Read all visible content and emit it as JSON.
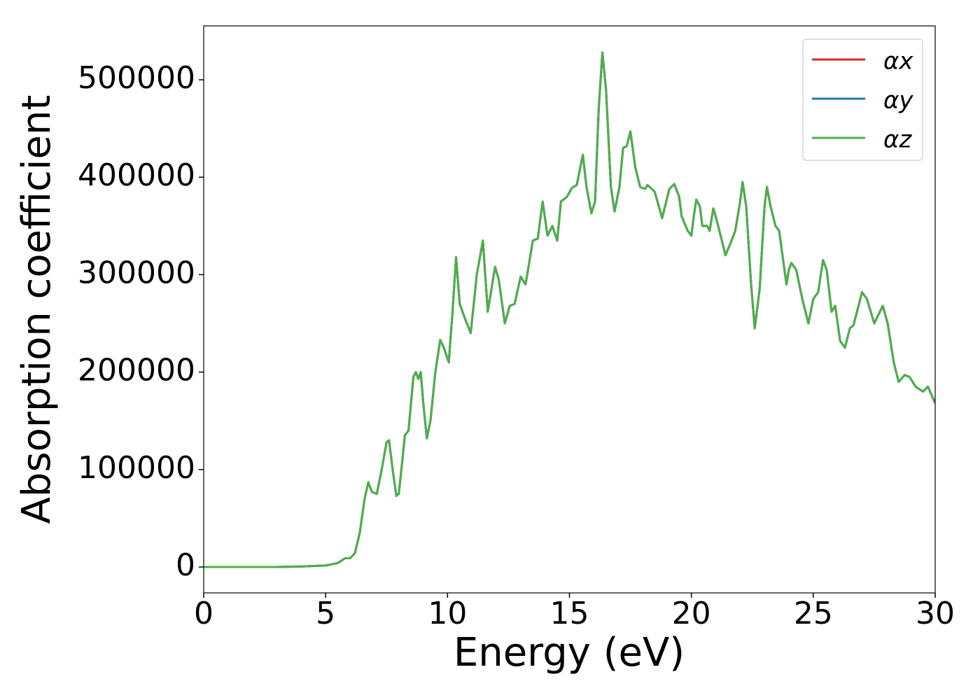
{
  "chart_data": {
    "type": "line",
    "xlabel": "Energy (eV)",
    "ylabel": "Absorption coefficient",
    "x": [
      0,
      1,
      2,
      3,
      4,
      5,
      5.5,
      5.8,
      6.0,
      6.2,
      6.4,
      6.6,
      6.75,
      6.9,
      7.1,
      7.3,
      7.5,
      7.6,
      7.75,
      7.9,
      8.0,
      8.15,
      8.25,
      8.4,
      8.6,
      8.7,
      8.8,
      8.9,
      9.0,
      9.15,
      9.3,
      9.5,
      9.7,
      9.85,
      10.05,
      10.2,
      10.35,
      10.5,
      10.7,
      10.95,
      11.2,
      11.45,
      11.65,
      11.95,
      12.1,
      12.35,
      12.55,
      12.75,
      13.0,
      13.2,
      13.5,
      13.7,
      13.9,
      14.1,
      14.3,
      14.5,
      14.65,
      14.9,
      15.1,
      15.3,
      15.55,
      15.7,
      15.9,
      16.05,
      16.2,
      16.35,
      16.5,
      16.7,
      16.85,
      17.05,
      17.2,
      17.35,
      17.5,
      17.7,
      17.9,
      18.1,
      18.2,
      18.5,
      18.8,
      19.1,
      19.3,
      19.5,
      19.6,
      19.85,
      20.0,
      20.1,
      20.2,
      20.35,
      20.45,
      20.65,
      20.75,
      20.9,
      21.05,
      21.2,
      21.4,
      21.65,
      21.8,
      22.0,
      22.1,
      22.25,
      22.45,
      22.6,
      22.8,
      23.0,
      23.1,
      23.25,
      23.45,
      23.6,
      23.9,
      24.0,
      24.1,
      24.3,
      24.55,
      24.8,
      25.0,
      25.2,
      25.4,
      25.55,
      25.75,
      25.9,
      26.1,
      26.3,
      26.5,
      26.65,
      27.0,
      27.2,
      27.5,
      27.85,
      28.05,
      28.3,
      28.5,
      28.75,
      28.95,
      29.2,
      29.5,
      29.7,
      30
    ],
    "series": [
      {
        "name": "αx",
        "color": "#d62728",
        "values": [
          0,
          0,
          0,
          0,
          500,
          1500,
          4000,
          9000,
          9000,
          14000,
          35000,
          70000,
          87000,
          77000,
          75000,
          100000,
          128000,
          130000,
          100000,
          73000,
          75000,
          110000,
          135000,
          140000,
          195000,
          200000,
          193000,
          200000,
          170000,
          132000,
          150000,
          200000,
          233000,
          225000,
          210000,
          260000,
          318000,
          270000,
          256000,
          240000,
          300000,
          335000,
          262000,
          308000,
          295000,
          250000,
          268000,
          270000,
          298000,
          290000,
          335000,
          337000,
          375000,
          340000,
          350000,
          335000,
          375000,
          380000,
          389000,
          392000,
          423000,
          390000,
          363000,
          375000,
          470000,
          528000,
          490000,
          390000,
          365000,
          390000,
          430000,
          432000,
          447000,
          410000,
          390000,
          388000,
          392000,
          385000,
          358000,
          388000,
          393000,
          380000,
          360000,
          345000,
          340000,
          360000,
          377000,
          370000,
          350000,
          350000,
          345000,
          368000,
          355000,
          340000,
          320000,
          335000,
          345000,
          375000,
          395000,
          370000,
          290000,
          245000,
          285000,
          370000,
          390000,
          370000,
          350000,
          345000,
          290000,
          305000,
          312000,
          305000,
          275000,
          250000,
          275000,
          282000,
          315000,
          305000,
          262000,
          268000,
          232000,
          225000,
          245000,
          248000,
          282000,
          275000,
          250000,
          268000,
          250000,
          210000,
          190000,
          197000,
          195000,
          185000,
          180000,
          185000,
          168000
        ]
      },
      {
        "name": "αy",
        "color": "#1f77b4",
        "values": [
          0,
          0,
          0,
          0,
          500,
          1500,
          4000,
          9000,
          9000,
          14000,
          35000,
          70000,
          87000,
          77000,
          75000,
          100000,
          128000,
          130000,
          100000,
          73000,
          75000,
          110000,
          135000,
          140000,
          195000,
          200000,
          193000,
          200000,
          170000,
          132000,
          150000,
          200000,
          233000,
          225000,
          210000,
          260000,
          318000,
          270000,
          256000,
          240000,
          300000,
          335000,
          262000,
          308000,
          295000,
          250000,
          268000,
          270000,
          298000,
          290000,
          335000,
          337000,
          375000,
          340000,
          350000,
          335000,
          375000,
          380000,
          389000,
          392000,
          423000,
          390000,
          363000,
          375000,
          470000,
          528000,
          490000,
          390000,
          365000,
          390000,
          430000,
          432000,
          447000,
          410000,
          390000,
          388000,
          392000,
          385000,
          358000,
          388000,
          393000,
          380000,
          360000,
          345000,
          340000,
          360000,
          377000,
          370000,
          350000,
          350000,
          345000,
          368000,
          355000,
          340000,
          320000,
          335000,
          345000,
          375000,
          395000,
          370000,
          290000,
          245000,
          285000,
          370000,
          390000,
          370000,
          350000,
          345000,
          290000,
          305000,
          312000,
          305000,
          275000,
          250000,
          275000,
          282000,
          315000,
          305000,
          262000,
          268000,
          232000,
          225000,
          245000,
          248000,
          282000,
          275000,
          250000,
          268000,
          250000,
          210000,
          190000,
          197000,
          195000,
          185000,
          180000,
          185000,
          168000
        ]
      },
      {
        "name": "αz",
        "color": "#4daf4a",
        "values": [
          0,
          0,
          0,
          0,
          500,
          1500,
          4000,
          9000,
          9000,
          14000,
          35000,
          70000,
          87000,
          77000,
          75000,
          100000,
          128000,
          130000,
          100000,
          73000,
          75000,
          110000,
          135000,
          140000,
          195000,
          200000,
          193000,
          200000,
          170000,
          132000,
          150000,
          200000,
          233000,
          225000,
          210000,
          260000,
          318000,
          270000,
          256000,
          240000,
          300000,
          335000,
          262000,
          308000,
          295000,
          250000,
          268000,
          270000,
          298000,
          290000,
          335000,
          337000,
          375000,
          340000,
          350000,
          335000,
          375000,
          380000,
          389000,
          392000,
          423000,
          390000,
          363000,
          375000,
          470000,
          528000,
          490000,
          390000,
          365000,
          390000,
          430000,
          432000,
          447000,
          410000,
          390000,
          388000,
          392000,
          385000,
          358000,
          388000,
          393000,
          380000,
          360000,
          345000,
          340000,
          360000,
          377000,
          370000,
          350000,
          350000,
          345000,
          368000,
          355000,
          340000,
          320000,
          335000,
          345000,
          375000,
          395000,
          370000,
          290000,
          245000,
          285000,
          370000,
          390000,
          370000,
          350000,
          345000,
          290000,
          305000,
          312000,
          305000,
          275000,
          250000,
          275000,
          282000,
          315000,
          305000,
          262000,
          268000,
          232000,
          225000,
          245000,
          248000,
          282000,
          275000,
          250000,
          268000,
          250000,
          210000,
          190000,
          197000,
          195000,
          185000,
          180000,
          185000,
          168000
        ]
      }
    ],
    "xlim": [
      0,
      30
    ],
    "xticks": [
      0,
      5,
      10,
      15,
      20,
      25,
      30
    ],
    "ylim": [
      -26600,
      555300
    ],
    "yticks": [
      0,
      100000,
      200000,
      300000,
      400000,
      500000
    ],
    "legend": "upper right"
  }
}
